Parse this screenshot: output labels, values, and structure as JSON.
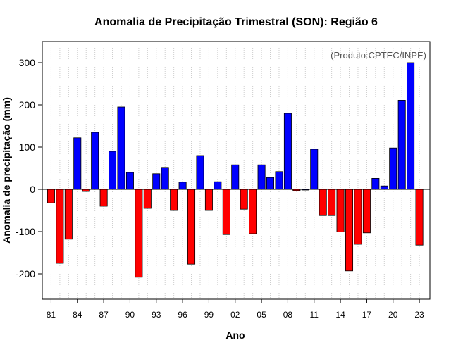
{
  "chart_data": {
    "type": "bar",
    "title": "Anomalia de Precipitação Trimestral (SON): Região 6",
    "xlabel": "Ano",
    "ylabel": "Anomalia de precipitação (mm)",
    "source_note": "(Produto:CPTEC/INPE)",
    "ylim": [
      -260,
      350
    ],
    "yticks": [
      -200,
      -100,
      0,
      100,
      200,
      300
    ],
    "grid": "vertical-dotted",
    "colors": {
      "positive": "#0000ff",
      "negative": "#ff0000",
      "grid": "#cccccc"
    },
    "xtick_labels": [
      "81",
      "84",
      "87",
      "90",
      "93",
      "96",
      "99",
      "02",
      "05",
      "08",
      "11",
      "14",
      "17",
      "20",
      "23"
    ],
    "xtick_years": [
      1981,
      1984,
      1987,
      1990,
      1993,
      1996,
      1999,
      2002,
      2005,
      2008,
      2011,
      2014,
      2017,
      2020,
      2023
    ],
    "years": [
      1981,
      1982,
      1983,
      1984,
      1985,
      1986,
      1987,
      1988,
      1989,
      1990,
      1991,
      1992,
      1993,
      1994,
      1995,
      1996,
      1997,
      1998,
      1999,
      2000,
      2001,
      2002,
      2003,
      2004,
      2005,
      2006,
      2007,
      2008,
      2009,
      2010,
      2011,
      2012,
      2013,
      2014,
      2015,
      2016,
      2017,
      2018,
      2019,
      2020,
      2021,
      2022,
      2023
    ],
    "values": [
      -32,
      -175,
      -118,
      122,
      -5,
      135,
      -40,
      90,
      195,
      40,
      -208,
      -45,
      37,
      52,
      -50,
      17,
      -177,
      80,
      -50,
      18,
      -107,
      58,
      -47,
      -105,
      58,
      28,
      42,
      180,
      -3,
      0,
      95,
      -62,
      -62,
      -101,
      -193,
      -130,
      -103,
      26,
      8,
      98,
      211,
      300,
      -132
    ]
  }
}
